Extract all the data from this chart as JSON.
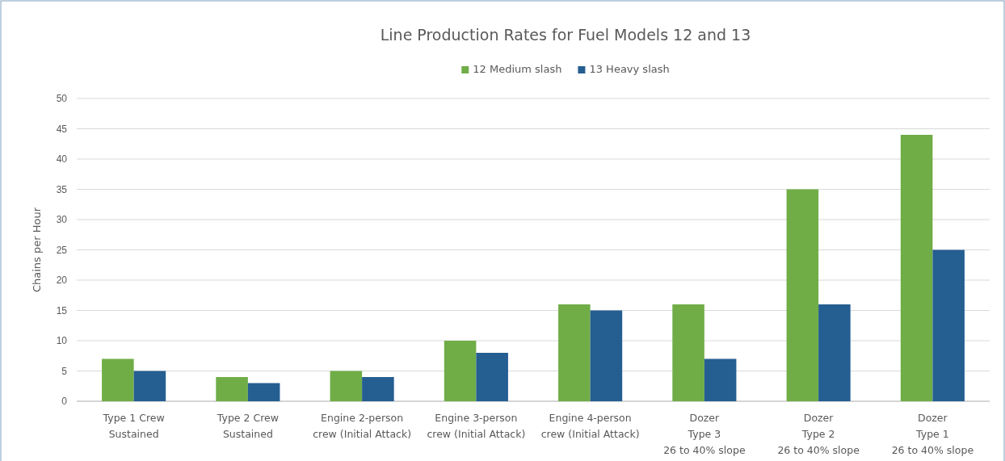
{
  "chart_data": {
    "type": "bar",
    "title": "Line Production Rates for Fuel Models 12 and 13",
    "ylabel": "Chains per Hour",
    "categories": [
      "Type 1 Crew\nSustained",
      "Type 2 Crew\nSustained",
      "Engine 2-person\ncrew (Initial Attack)",
      "Engine 3-person\ncrew (Initial Attack)",
      "Engine 4-person\ncrew (Initial Attack)",
      "Dozer\nType 3\n26 to 40% slope",
      "Dozer\nType 2\n26 to 40% slope",
      "Dozer\nType 1\n26 to 40% slope"
    ],
    "series": [
      {
        "name": "12 Medium slash",
        "color": "#70ad47",
        "values": [
          7,
          4,
          5,
          10,
          16,
          16,
          35,
          44
        ]
      },
      {
        "name": "13 Heavy slash",
        "color": "#255e91",
        "values": [
          5,
          3,
          4,
          8,
          15,
          7,
          16,
          25
        ]
      }
    ],
    "ylim": [
      0,
      50
    ],
    "yticks": [
      0,
      5,
      10,
      15,
      20,
      25,
      30,
      35,
      40,
      45,
      50
    ],
    "grid": "y",
    "legend": "top"
  }
}
